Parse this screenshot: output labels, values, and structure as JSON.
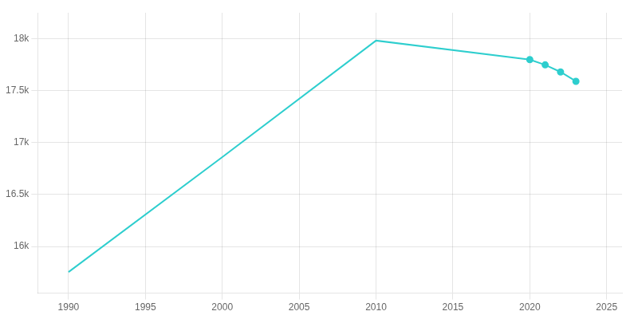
{
  "chart_data": {
    "type": "line",
    "x": [
      1990,
      2000,
      2010,
      2020,
      2021,
      2022,
      2023
    ],
    "series": [
      {
        "values": [
          15753,
          16860,
          17982,
          17799,
          17748,
          17680,
          17590
        ],
        "color": "#2ecece",
        "marker": "none"
      },
      {
        "x": [
          2020,
          2021,
          2022,
          2023
        ],
        "values": [
          17799,
          17748,
          17680,
          17590
        ],
        "color": "#2ecece",
        "marker": "circle",
        "line_style": "none"
      }
    ],
    "xlim": [
      1988,
      2026
    ],
    "ylim": [
      15550,
      18250
    ],
    "xticks": [
      1990,
      1995,
      2000,
      2005,
      2010,
      2015,
      2020,
      2025
    ],
    "yticks": [
      {
        "value": 16000,
        "label": "16k"
      },
      {
        "value": 16500,
        "label": "16.5k"
      },
      {
        "value": 17000,
        "label": "17k"
      },
      {
        "value": 17500,
        "label": "17.5k"
      },
      {
        "value": 18000,
        "label": "18k"
      }
    ],
    "grid": true
  }
}
